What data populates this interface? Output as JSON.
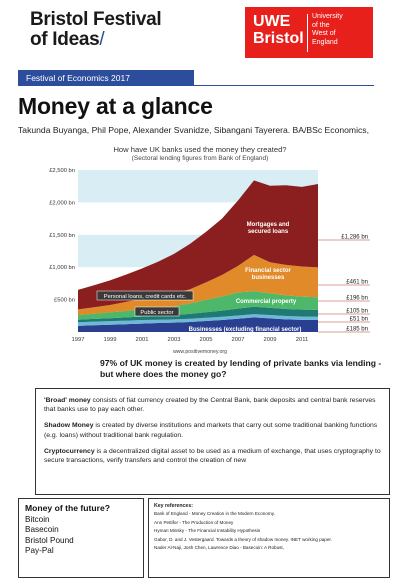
{
  "header": {
    "festival_line1": "Bristol Festival",
    "festival_line2": "of Ideas",
    "festival_slash": "/",
    "uwe_line1": "UWE",
    "uwe_line2": "Bristol",
    "uwe_small": [
      "University",
      "of the",
      "West of",
      "England"
    ],
    "banner": "Festival of Economics 2017"
  },
  "title": "Money at a glance",
  "authors": "Takunda Buyanga, Phil Pope, Alexander Svanidze, Sibangani Tayerera. BA/BSc Economics,",
  "chart_data": {
    "type": "area",
    "title": "How have UK banks used the money they created?",
    "subtitle": "(Sectoral lending figures from Bank of England)",
    "x": [
      1997,
      1998,
      1999,
      2000,
      2001,
      2002,
      2003,
      2004,
      2005,
      2006,
      2007,
      2008,
      2009,
      2010,
      2011,
      2012
    ],
    "x_tick_labels": [
      "1997",
      "1999",
      "2001",
      "2003",
      "2005",
      "2007",
      "2009",
      "2011"
    ],
    "y_tick_labels": [
      "£500 bn",
      "£1,000 bn",
      "£1,500 bn",
      "£2,000 bn",
      "£2,500 bn"
    ],
    "ylim": [
      0,
      2500
    ],
    "series": [
      {
        "name": "Businesses (excluding financial sector)",
        "color": "#2a3f8f",
        "end_label": "£185 bn",
        "values": [
          95,
          105,
          112,
          120,
          130,
          138,
          145,
          155,
          170,
          185,
          205,
          225,
          210,
          195,
          188,
          185
        ]
      },
      {
        "name": "Public sector",
        "color": "#6fb8d8",
        "end_label": "£51 bn",
        "values": [
          55,
          55,
          55,
          55,
          55,
          52,
          50,
          50,
          50,
          50,
          50,
          50,
          52,
          52,
          51,
          51
        ]
      },
      {
        "name": "",
        "color": "#1f7a74",
        "end_label": "£105 bn",
        "values": [
          40,
          42,
          45,
          50,
          55,
          60,
          65,
          75,
          85,
          95,
          105,
          115,
          110,
          108,
          106,
          105
        ]
      },
      {
        "name": "Commercial property",
        "color": "#4db86a",
        "end_label": "£196 bn",
        "values": [
          70,
          80,
          90,
          100,
          110,
          120,
          135,
          160,
          190,
          220,
          250,
          240,
          225,
          210,
          200,
          196
        ]
      },
      {
        "name": "Financial sector businesses",
        "color": "#e08a2a",
        "end_label": "£461 bn",
        "values": [
          90,
          100,
          115,
          140,
          160,
          175,
          190,
          220,
          270,
          330,
          410,
          560,
          480,
          470,
          465,
          461
        ]
      },
      {
        "name": "Mortgages and secured loans",
        "color": "#8b1e1e",
        "end_label": "£1,286 bn",
        "values": [
          300,
          340,
          380,
          420,
          470,
          540,
          620,
          700,
          780,
          870,
          1010,
          1150,
          1180,
          1230,
          1230,
          1286
        ]
      }
    ],
    "annotations": [
      "Personal loans, credit cards etc."
    ],
    "source": "www.positivemoney.org"
  },
  "statement": "97% of UK money is created by lending of private banks via lending - but where does the money go?",
  "definitions": [
    {
      "term": "'Broad' money",
      "text": " consists of fiat currency created by the Central Bank, bank deposits and central bank reserves that banks use to pay each other."
    },
    {
      "term": "Shadow Money",
      "text": " is created by diverse institutions and markets that carry out some traditional banking functions (e.g. loans) without traditional bank regulation."
    },
    {
      "term": "Cryptocurrency",
      "text": " is a decentralized digital asset to be used as a medium of exchange, that uses cryptography to secure transactions, verify transfers and control the creation of new"
    }
  ],
  "future": {
    "heading": "Money of the future?",
    "items": [
      "Bitcoin",
      "Basecoin",
      "Bristol Pound",
      "Pay-Pal"
    ]
  },
  "references": {
    "heading": "Key references:",
    "items": [
      "Bank of England - Money Creation in the Modern Economy.",
      "Ann Pettifor - The Production of Money",
      "Hyman Minsky - The Financial Instability Hypothesis",
      "Gabor, D. and J. Vestergaard. Towards a theory of shadow money. INET working paper.",
      "Nader Al-Naji, Josh Chen, Lawrence Diao - Basecoin: A Robust,"
    ]
  }
}
